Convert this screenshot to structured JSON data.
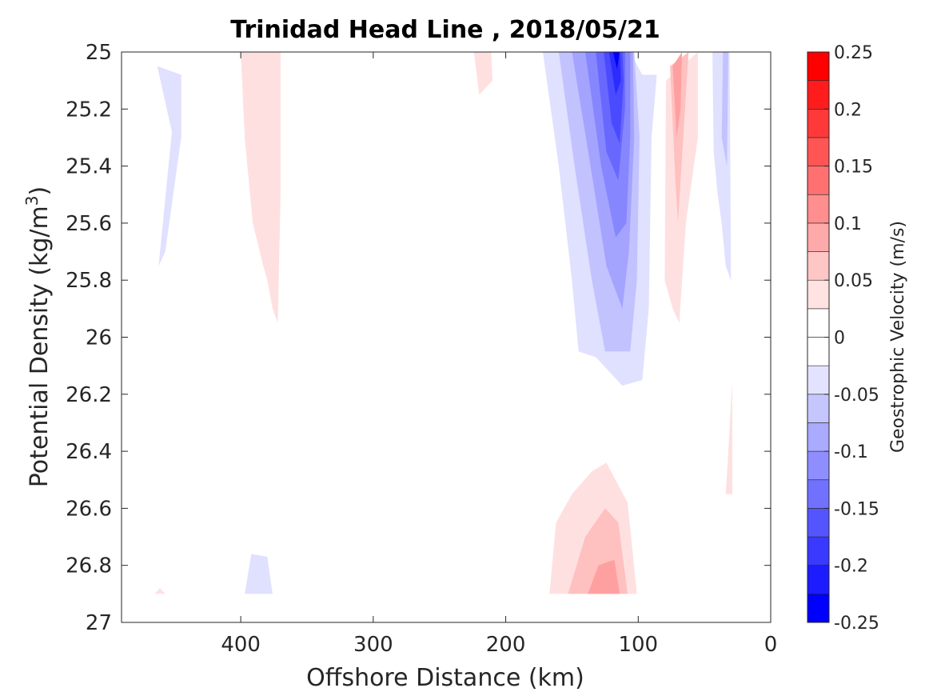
{
  "chart_data": {
    "type": "heatmap",
    "subtype": "filled-contour",
    "title": "Trinidad Head Line , 2018/05/21",
    "xlabel": "Offshore Distance (km)",
    "ylabel": "Potential Density (kg/m",
    "ylabel_sup": "3",
    "ylabel_close": ")",
    "xlim": [
      490,
      0
    ],
    "x_direction": "reversed",
    "x_ticks": [
      400,
      300,
      200,
      100,
      0
    ],
    "x_tick_labels": [
      "400",
      "300",
      "200",
      "100",
      "0"
    ],
    "ylim": [
      25,
      27
    ],
    "y_direction": "reversed",
    "y_ticks": [
      25,
      25.2,
      25.4,
      25.6,
      25.8,
      26,
      26.2,
      26.4,
      26.6,
      26.8,
      27
    ],
    "y_tick_labels": [
      "25",
      "25.2",
      "25.4",
      "25.6",
      "25.8",
      "26",
      "26.2",
      "26.4",
      "26.6",
      "26.8",
      "27"
    ],
    "colorbar": {
      "label": "Geostrophic Velocity (m/s)",
      "range": [
        -0.25,
        0.25
      ],
      "levels": [
        -0.25,
        -0.225,
        -0.2,
        -0.175,
        -0.15,
        -0.125,
        -0.1,
        -0.075,
        -0.05,
        -0.025,
        0,
        0.025,
        0.05,
        0.075,
        0.1,
        0.125,
        0.15,
        0.175,
        0.2,
        0.225,
        0.25
      ],
      "ticks": [
        0.25,
        0.2,
        0.15,
        0.1,
        0.05,
        0,
        -0.05,
        -0.1,
        -0.15,
        -0.2,
        -0.25
      ],
      "tick_labels": [
        "0.25",
        "0.2",
        "0.15",
        "0.1",
        "0.05",
        "0",
        "-0.05",
        "-0.1",
        "-0.15",
        "-0.2",
        "-0.25"
      ],
      "colormap": "blue-white-red"
    },
    "colors": {
      "pos_1": "#ffe0e0",
      "pos_2": "#ffc0c0",
      "pos_3": "#ffa0a0",
      "neg_1": "#e0e0ff",
      "neg_2": "#c2c2ff",
      "neg_3": "#a4a4ff",
      "neg_4": "#8686ff",
      "neg_5": "#6868ff",
      "neg_6": "#4a4aff",
      "neg_7": "#2c2cff",
      "neg_8": "#0000ff"
    },
    "regions": [
      {
        "name": "jet-core",
        "level": -0.05,
        "polygon": [
          [
            172,
            25
          ],
          [
            160,
            25.4
          ],
          [
            150,
            25.8
          ],
          [
            145,
            26.05
          ],
          [
            132,
            26.07
          ],
          [
            112,
            26.17
          ],
          [
            97,
            26.15
          ],
          [
            92,
            25.9
          ],
          [
            90,
            25.3
          ],
          [
            86,
            25.08
          ],
          [
            97,
            25.08
          ],
          [
            106,
            25
          ]
        ]
      },
      {
        "name": "jet-core",
        "level": -0.075,
        "polygon": [
          [
            160,
            25
          ],
          [
            148,
            25.4
          ],
          [
            135,
            25.8
          ],
          [
            125,
            26.05
          ],
          [
            106,
            26.05
          ],
          [
            101,
            25.8
          ],
          [
            99,
            25.3
          ],
          [
            103,
            25
          ]
        ]
      },
      {
        "name": "jet-core",
        "level": -0.1,
        "polygon": [
          [
            150,
            25
          ],
          [
            136,
            25.4
          ],
          [
            124,
            25.75
          ],
          [
            112,
            25.9
          ],
          [
            107,
            25.7
          ],
          [
            103,
            25.3
          ],
          [
            104,
            25
          ]
        ]
      },
      {
        "name": "jet-core",
        "level": -0.125,
        "polygon": [
          [
            140,
            25
          ],
          [
            128,
            25.4
          ],
          [
            117,
            25.65
          ],
          [
            109,
            25.6
          ],
          [
            106,
            25.3
          ],
          [
            106,
            25
          ]
        ]
      },
      {
        "name": "jet-core",
        "level": -0.15,
        "polygon": [
          [
            132,
            25
          ],
          [
            124,
            25.35
          ],
          [
            115,
            25.45
          ],
          [
            110,
            25.2
          ],
          [
            110,
            25
          ]
        ]
      },
      {
        "name": "jet-core",
        "level": -0.175,
        "polygon": [
          [
            126,
            25
          ],
          [
            120,
            25.25
          ],
          [
            114,
            25.32
          ],
          [
            111,
            25.1
          ],
          [
            112,
            25
          ]
        ]
      },
      {
        "name": "jet-core",
        "level": -0.2,
        "polygon": [
          [
            122,
            25
          ],
          [
            117,
            25.15
          ],
          [
            113,
            25.1
          ],
          [
            114,
            25
          ]
        ]
      },
      {
        "name": "jet-core",
        "level": -0.225,
        "polygon": [
          [
            119,
            25
          ],
          [
            116,
            25.06
          ],
          [
            114,
            25
          ]
        ]
      },
      {
        "name": "offshore-neg",
        "level": -0.05,
        "polygon": [
          [
            452,
            25.28
          ],
          [
            463,
            25.05
          ],
          [
            445,
            25.08
          ],
          [
            445,
            25.3
          ],
          [
            457,
            25.7
          ],
          [
            462,
            25.75
          ]
        ]
      },
      {
        "name": "offshore-neg-deep",
        "level": -0.05,
        "polygon": [
          [
            397,
            26.9
          ],
          [
            392,
            26.76
          ],
          [
            380,
            26.77
          ],
          [
            376,
            26.9
          ]
        ]
      },
      {
        "name": "nearshore-neg",
        "level": -0.05,
        "polygon": [
          [
            44,
            25
          ],
          [
            43,
            25.35
          ],
          [
            40,
            25.5
          ],
          [
            37,
            25.6
          ],
          [
            34,
            25.75
          ],
          [
            30,
            25.8
          ],
          [
            31,
            25
          ]
        ]
      },
      {
        "name": "nearshore-neg-2",
        "level": -0.075,
        "polygon": [
          [
            36,
            25
          ],
          [
            37,
            25.3
          ],
          [
            33,
            25.4
          ],
          [
            32,
            25
          ]
        ]
      },
      {
        "name": "offshore-pos",
        "level": 0.05,
        "polygon": [
          [
            400,
            25
          ],
          [
            397,
            25.3
          ],
          [
            391,
            25.6
          ],
          [
            383,
            25.75
          ],
          [
            380,
            25.8
          ],
          [
            376,
            25.9
          ],
          [
            372,
            25.95
          ],
          [
            370,
            25.5
          ],
          [
            370,
            25
          ]
        ]
      },
      {
        "name": "small-pos",
        "level": 0.05,
        "polygon": [
          [
            224,
            25
          ],
          [
            220,
            25.15
          ],
          [
            210,
            25.1
          ],
          [
            211,
            25
          ]
        ]
      },
      {
        "name": "nearshore-pos",
        "level": 0.05,
        "polygon": [
          [
            79,
            25.1
          ],
          [
            80,
            25.8
          ],
          [
            74,
            25.9
          ],
          [
            69,
            25.95
          ],
          [
            64,
            25.6
          ],
          [
            55,
            25.3
          ],
          [
            55,
            25
          ]
        ]
      },
      {
        "name": "nearshore-pos",
        "level": 0.075,
        "polygon": [
          [
            76,
            25.05
          ],
          [
            72,
            25.45
          ],
          [
            70,
            25.6
          ],
          [
            66,
            25.3
          ],
          [
            62,
            25
          ]
        ]
      },
      {
        "name": "nearshore-pos",
        "level": 0.1,
        "polygon": [
          [
            74,
            25.05
          ],
          [
            71,
            25.3
          ],
          [
            68,
            25.2
          ],
          [
            67,
            25
          ]
        ]
      },
      {
        "name": "deep-pos",
        "level": 0.05,
        "polygon": [
          [
            167,
            26.9
          ],
          [
            162,
            26.65
          ],
          [
            150,
            26.55
          ],
          [
            135,
            26.47
          ],
          [
            124,
            26.44
          ],
          [
            108,
            26.58
          ],
          [
            101,
            26.9
          ]
        ]
      },
      {
        "name": "deep-pos",
        "level": 0.075,
        "polygon": [
          [
            153,
            26.9
          ],
          [
            140,
            26.7
          ],
          [
            125,
            26.6
          ],
          [
            115,
            26.65
          ],
          [
            108,
            26.9
          ]
        ]
      },
      {
        "name": "deep-pos",
        "level": 0.1,
        "polygon": [
          [
            138,
            26.9
          ],
          [
            130,
            26.8
          ],
          [
            118,
            26.78
          ],
          [
            114,
            26.9
          ]
        ]
      },
      {
        "name": "nearshore-pos-deep",
        "level": 0.05,
        "polygon": [
          [
            34,
            26.55
          ],
          [
            32,
            26.4
          ],
          [
            29,
            26.15
          ],
          [
            29,
            26.55
          ]
        ]
      },
      {
        "name": "tiny-pos",
        "level": 0.05,
        "polygon": [
          [
            465,
            26.9
          ],
          [
            461,
            26.88
          ],
          [
            457,
            26.9
          ]
        ]
      }
    ]
  }
}
